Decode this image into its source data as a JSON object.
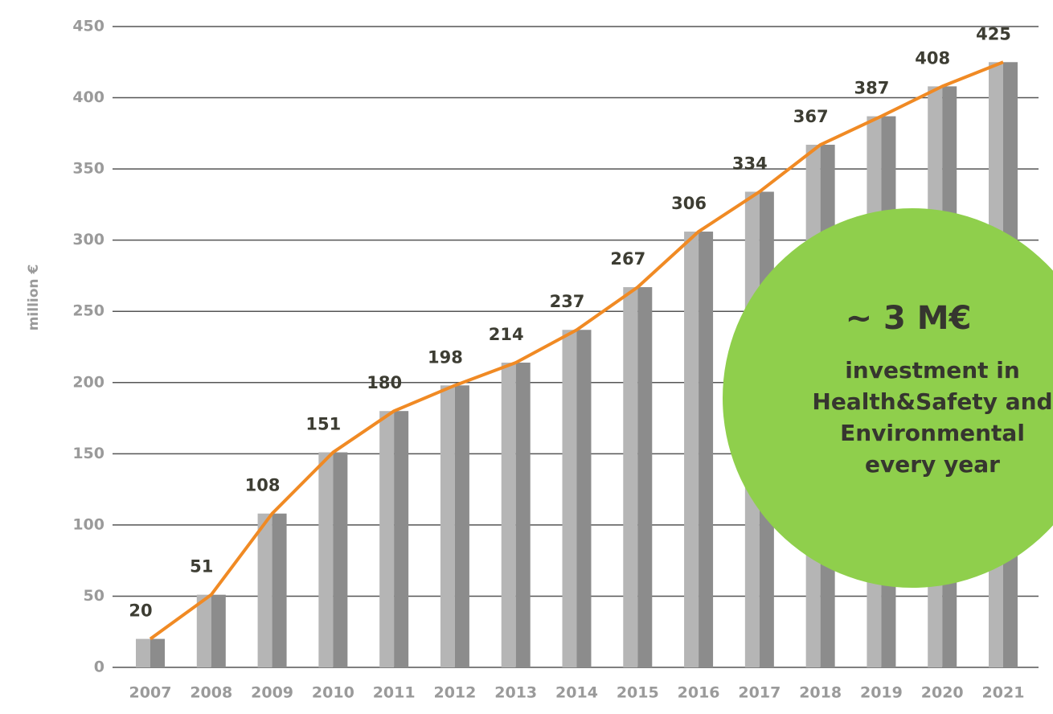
{
  "chart_data": {
    "type": "bar_line",
    "y_label": "million €",
    "categories": [
      "2007",
      "2008",
      "2009",
      "2010",
      "2011",
      "2012",
      "2013",
      "2014",
      "2015",
      "2016",
      "2017",
      "2018",
      "2019",
      "2020",
      "2021"
    ],
    "values": [
      20,
      51,
      108,
      151,
      180,
      198,
      214,
      237,
      267,
      306,
      334,
      367,
      387,
      408,
      425
    ],
    "bar_color": "#b5b5b5",
    "line_color": "#f08a24",
    "ylim": [
      0,
      450
    ],
    "yticks": [
      0,
      50,
      100,
      150,
      200,
      250,
      300,
      350,
      400,
      450
    ],
    "grid": true,
    "annotation": {
      "headline": "~ 3 M€",
      "lines": [
        "investment in",
        "Health&Safety and",
        "Environmental",
        "every year"
      ],
      "color": "#8fcf4c"
    }
  }
}
